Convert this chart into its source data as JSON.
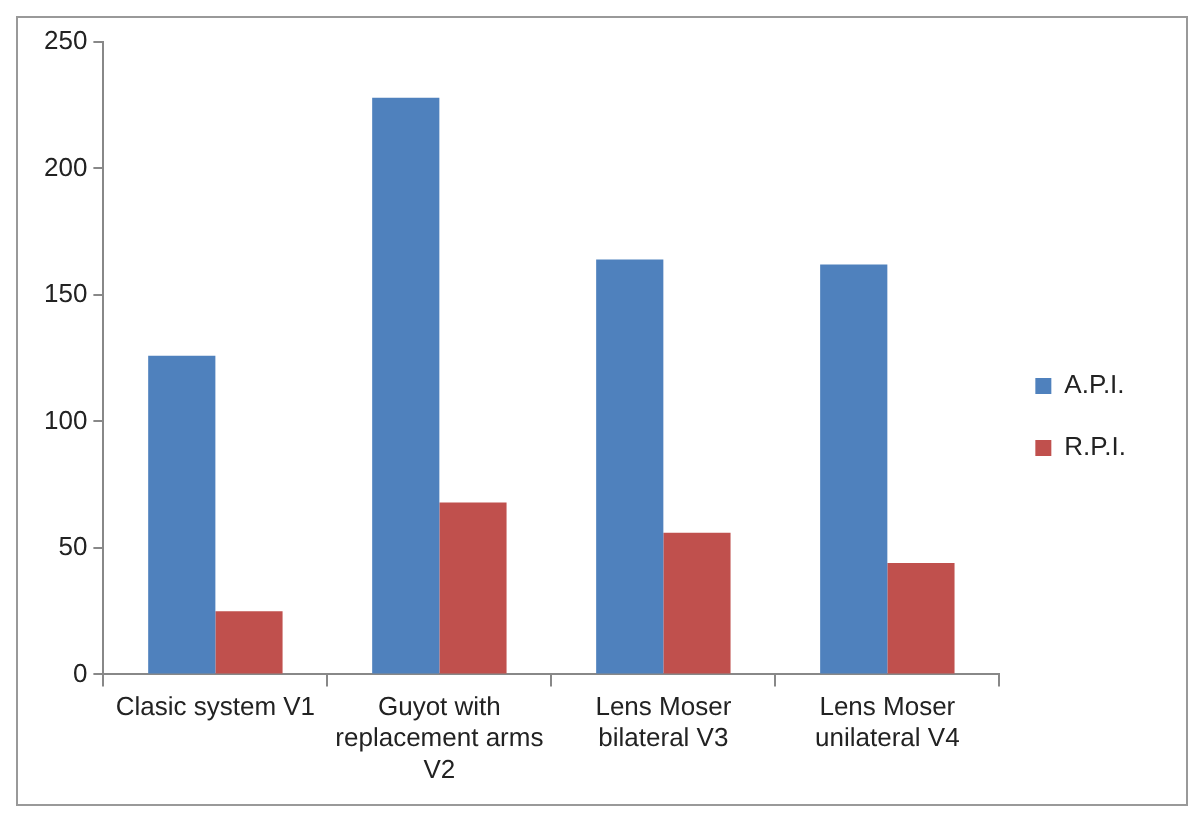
{
  "chart_data": {
    "type": "bar",
    "categories": [
      "Clasic system V1",
      "Guyot with replacement arms V2",
      "Lens Moser bilateral V3",
      "Lens Moser unilateral V4"
    ],
    "series": [
      {
        "name": "A.P.I.",
        "color": "#4f81bd",
        "values": [
          126,
          228,
          164,
          162
        ]
      },
      {
        "name": "R.P.I.",
        "color": "#c0504d",
        "values": [
          25,
          68,
          56,
          44
        ]
      }
    ],
    "ylim": [
      0,
      250
    ],
    "yticks": [
      0,
      50,
      100,
      150,
      200,
      250
    ],
    "grid": false,
    "legend": "right"
  }
}
